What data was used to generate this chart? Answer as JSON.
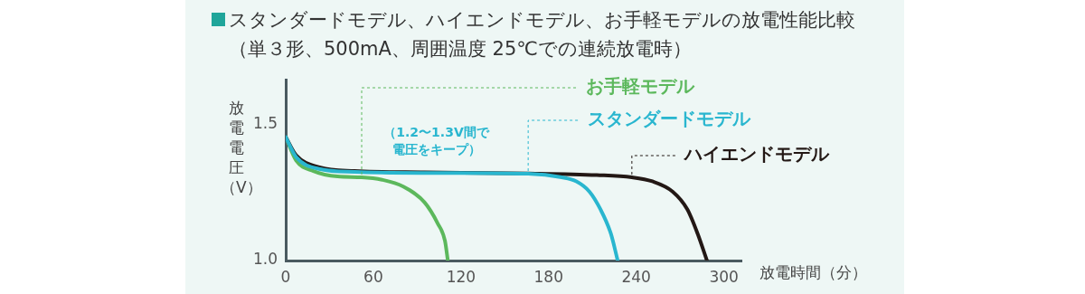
{
  "chart_data": {
    "type": "line",
    "title": "スタンダードモデル、ハイエンドモデル、お手軽モデルの放電性能比較",
    "subtitle": "（単３形、500mA、周囲温度 25℃での連続放電時）",
    "xlabel": "放電時間（分）",
    "ylabel": "放電電圧（V）",
    "annotations": [
      "（1.2〜1.3V間で電圧をキープ）"
    ],
    "xlim": [
      0,
      312
    ],
    "xticks": [
      0,
      60,
      120,
      180,
      240,
      300
    ],
    "ylim": [
      1.0,
      1.665
    ],
    "yticks": [
      {
        "value": 1.0,
        "label": "1.0"
      },
      {
        "value": 1.5,
        "label": "1.5"
      }
    ],
    "grid": false,
    "legend": "right",
    "marker": "none",
    "line_style": "solid",
    "series": [
      {
        "name": "スタンダードモデル",
        "color": "#29b6cf",
        "x": [
          0,
          7.1,
          23.7,
          47,
          95,
          166,
          189,
          199,
          208,
          215.5,
          222.6,
          227.3
        ],
        "values": [
          1.454,
          1.381,
          1.336,
          1.326,
          1.322,
          1.319,
          1.306,
          1.291,
          1.253,
          1.188,
          1.099,
          1.0
        ]
      },
      {
        "name": "ハイエンドモデル",
        "color": "#231815",
        "x": [
          0,
          7.1,
          23.7,
          47,
          95,
          166,
          213,
          237,
          251,
          265,
          275,
          282,
          288.4
        ],
        "values": [
          1.454,
          1.387,
          1.342,
          1.329,
          1.324,
          1.32,
          1.314,
          1.306,
          1.291,
          1.253,
          1.188,
          1.099,
          1.0
        ]
      },
      {
        "name": "お手軽モデル",
        "color": "#5cb85c",
        "x": [
          0,
          7.1,
          19,
          35.5,
          52,
          66,
          80.5,
          95,
          104,
          109,
          111
        ],
        "values": [
          1.454,
          1.368,
          1.329,
          1.309,
          1.306,
          1.297,
          1.272,
          1.214,
          1.137,
          1.073,
          1.0
        ]
      }
    ]
  }
}
